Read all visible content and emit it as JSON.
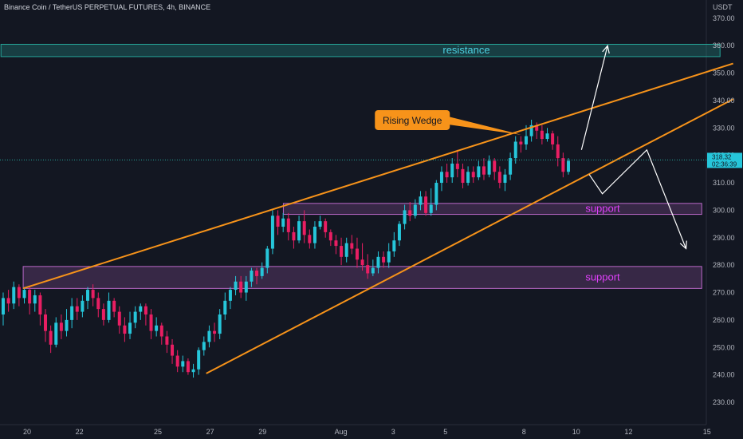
{
  "header": {
    "title": "Binance Coin / TetherUS PERPETUAL FUTURES, 4h, BINANCE"
  },
  "colors": {
    "background": "#131722",
    "up": "#26c6da",
    "down": "#e91e63",
    "wedge": "#f7931a",
    "resistance": "#26a69a",
    "support": "#ba68c8",
    "arrows": "#ffffff",
    "axis_text": "#b2b5be"
  },
  "chart_data": {
    "type": "candlestick",
    "title": "Binance Coin / TetherUS PERPETUAL FUTURES, 4h, BINANCE",
    "currency": "USDT",
    "ylim": [
      223,
      373
    ],
    "y_ticks": [
      230,
      240,
      250,
      260,
      270,
      280,
      290,
      300,
      310,
      320,
      330,
      340,
      350,
      360,
      370
    ],
    "x_ticks": [
      {
        "day": 0,
        "label": "20"
      },
      {
        "day": 2,
        "label": "22"
      },
      {
        "day": 5,
        "label": "25"
      },
      {
        "day": 7,
        "label": "27"
      },
      {
        "day": 9,
        "label": "29"
      },
      {
        "day": 12,
        "label": "Aug"
      },
      {
        "day": 14,
        "label": "3"
      },
      {
        "day": 16,
        "label": "5"
      },
      {
        "day": 19,
        "label": "8"
      },
      {
        "day": 21,
        "label": "10"
      },
      {
        "day": 23,
        "label": "12"
      },
      {
        "day": 26,
        "label": "15"
      }
    ],
    "candles": [
      [
        262,
        268,
        258,
        270
      ],
      [
        268,
        266,
        263,
        271
      ],
      [
        266,
        272,
        264,
        274
      ],
      [
        272,
        268,
        265,
        273
      ],
      [
        268,
        271,
        266,
        272
      ],
      [
        271,
        266,
        262,
        272
      ],
      [
        266,
        269,
        263,
        271
      ],
      [
        269,
        262,
        258,
        270
      ],
      [
        262,
        256,
        252,
        264
      ],
      [
        256,
        251,
        248,
        258
      ],
      [
        251,
        259,
        250,
        261
      ],
      [
        259,
        256,
        253,
        262
      ],
      [
        256,
        260,
        254,
        264
      ],
      [
        260,
        265,
        257,
        268
      ],
      [
        265,
        263,
        260,
        268
      ],
      [
        263,
        267,
        261,
        269
      ],
      [
        267,
        271,
        264,
        272
      ],
      [
        271,
        268,
        265,
        273
      ],
      [
        268,
        264,
        261,
        270
      ],
      [
        264,
        260,
        258,
        266
      ],
      [
        260,
        267,
        259,
        270
      ],
      [
        267,
        263,
        261,
        268
      ],
      [
        263,
        258,
        255,
        265
      ],
      [
        258,
        255,
        252,
        261
      ],
      [
        255,
        259,
        253,
        263
      ],
      [
        259,
        263,
        257,
        265
      ],
      [
        263,
        265,
        260,
        266
      ],
      [
        265,
        262,
        258,
        266
      ],
      [
        262,
        256,
        253,
        264
      ],
      [
        256,
        258,
        254,
        261
      ],
      [
        258,
        254,
        251,
        259
      ],
      [
        254,
        251,
        248,
        256
      ],
      [
        251,
        247,
        244,
        253
      ],
      [
        247,
        243,
        241,
        249
      ],
      [
        243,
        245,
        241,
        247
      ],
      [
        245,
        241,
        240,
        246
      ],
      [
        241,
        242,
        239,
        244
      ],
      [
        242,
        249,
        240,
        250
      ],
      [
        249,
        252,
        247,
        254
      ],
      [
        252,
        256,
        250,
        258
      ],
      [
        256,
        255,
        252,
        259
      ],
      [
        255,
        262,
        253,
        264
      ],
      [
        262,
        267,
        260,
        270
      ],
      [
        267,
        271,
        264,
        272
      ],
      [
        271,
        274,
        269,
        276
      ],
      [
        274,
        270,
        268,
        276
      ],
      [
        270,
        274,
        267,
        276
      ],
      [
        274,
        278,
        272,
        279
      ],
      [
        278,
        276,
        273,
        279
      ],
      [
        276,
        279,
        275,
        281
      ],
      [
        279,
        286,
        277,
        287
      ],
      [
        286,
        298,
        284,
        300
      ],
      [
        298,
        294,
        291,
        300
      ],
      [
        294,
        297,
        292,
        299
      ],
      [
        297,
        292,
        289,
        299
      ],
      [
        292,
        289,
        286,
        294
      ],
      [
        289,
        296,
        288,
        298
      ],
      [
        296,
        291,
        288,
        300
      ],
      [
        291,
        288,
        286,
        293
      ],
      [
        288,
        294,
        286,
        296
      ],
      [
        294,
        296,
        293,
        298
      ],
      [
        296,
        292,
        290,
        297
      ],
      [
        292,
        289,
        287,
        293
      ],
      [
        289,
        287,
        284,
        291
      ],
      [
        287,
        283,
        280,
        290
      ],
      [
        283,
        288,
        281,
        290
      ],
      [
        288,
        286,
        284,
        291
      ],
      [
        286,
        282,
        279,
        290
      ],
      [
        282,
        280,
        278,
        288
      ],
      [
        280,
        277,
        275,
        284
      ],
      [
        277,
        279,
        276,
        282
      ],
      [
        279,
        283,
        277,
        285
      ],
      [
        283,
        281,
        279,
        285
      ],
      [
        281,
        285,
        279,
        288
      ],
      [
        285,
        289,
        283,
        292
      ],
      [
        289,
        295,
        287,
        296
      ],
      [
        295,
        300,
        293,
        302
      ],
      [
        300,
        298,
        296,
        303
      ],
      [
        298,
        302,
        297,
        304
      ],
      [
        302,
        305,
        300,
        307
      ],
      [
        305,
        299,
        298,
        307
      ],
      [
        299,
        302,
        298,
        308
      ],
      [
        302,
        310,
        300,
        311
      ],
      [
        310,
        314,
        307,
        316
      ],
      [
        314,
        312,
        310,
        317
      ],
      [
        312,
        317,
        310,
        319
      ],
      [
        317,
        315,
        312,
        322
      ],
      [
        315,
        310,
        308,
        317
      ],
      [
        310,
        314,
        309,
        316
      ],
      [
        314,
        312,
        310,
        316
      ],
      [
        312,
        316,
        311,
        318
      ],
      [
        316,
        313,
        311,
        319
      ],
      [
        313,
        318,
        312,
        320
      ],
      [
        318,
        314,
        311,
        319
      ],
      [
        314,
        310,
        308,
        316
      ],
      [
        310,
        313,
        307,
        315
      ],
      [
        313,
        319,
        311,
        321
      ],
      [
        319,
        325,
        317,
        327
      ],
      [
        325,
        324,
        321,
        327
      ],
      [
        324,
        327,
        322,
        331
      ],
      [
        327,
        331,
        325,
        333
      ],
      [
        331,
        329,
        326,
        332
      ],
      [
        329,
        326,
        324,
        331
      ],
      [
        326,
        328,
        325,
        330
      ],
      [
        328,
        324,
        322,
        329
      ],
      [
        324,
        319,
        316,
        327
      ],
      [
        319,
        314,
        312,
        321
      ],
      [
        314,
        318,
        313,
        319
      ]
    ],
    "current_price": 318.32,
    "countdown": "02:36:39",
    "zones": [
      {
        "name": "resistance",
        "label": "resistance",
        "low": 356,
        "high": 360.5,
        "start_day": -1,
        "end_day": 26.5
      },
      {
        "name": "support-upper",
        "label": "support",
        "low": 298.5,
        "high": 302.5,
        "start_day": 9.8,
        "end_day": 25.8
      },
      {
        "name": "support-lower",
        "label": "support",
        "low": 271.5,
        "high": 279.5,
        "start_day": -0.15,
        "end_day": 25.8
      }
    ],
    "wedge_lines": [
      {
        "name": "wedge-upper-line",
        "from": [
          -0.15,
          271.5
        ],
        "to": [
          27,
          353.5
        ]
      },
      {
        "name": "wedge-lower-line",
        "from": [
          6.85,
          240.5
        ],
        "to": [
          27,
          340.5
        ]
      }
    ],
    "callout": {
      "label": "Rising Wedge",
      "x_day": 13.3,
      "y": 333,
      "pointer_to": [
        18.9,
        327.5
      ]
    },
    "arrows": [
      {
        "name": "bullish-arrow",
        "points": [
          [
            21.2,
            322
          ],
          [
            22.2,
            360
          ]
        ]
      },
      {
        "name": "bearish-arrow",
        "points": [
          [
            21.5,
            313
          ],
          [
            22.0,
            306
          ],
          [
            23.7,
            322
          ],
          [
            25.2,
            286
          ]
        ]
      }
    ]
  }
}
